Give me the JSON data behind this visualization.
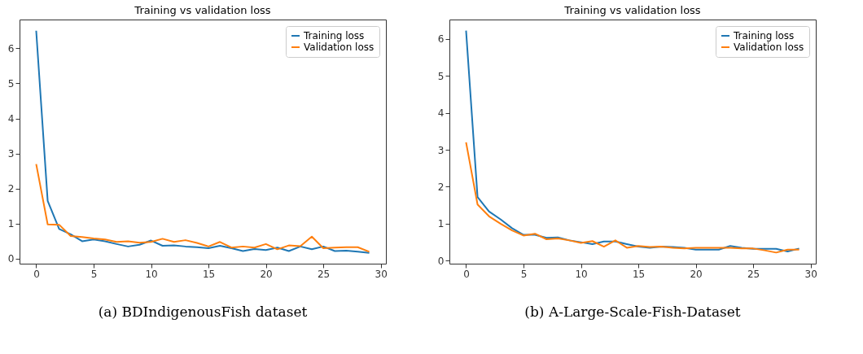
{
  "chart_data": [
    {
      "type": "line",
      "title": "Training vs validation loss",
      "x": [
        0,
        1,
        2,
        3,
        4,
        5,
        6,
        7,
        8,
        9,
        10,
        11,
        12,
        13,
        14,
        15,
        16,
        17,
        18,
        19,
        20,
        21,
        22,
        23,
        24,
        25,
        26,
        27,
        28,
        29
      ],
      "xlim": [
        -1.45,
        30.45
      ],
      "xticks": [
        0,
        5,
        10,
        15,
        20,
        25,
        30
      ],
      "ylim": [
        -0.14,
        6.82
      ],
      "yticks": [
        0,
        1,
        2,
        3,
        4,
        5,
        6
      ],
      "grid": false,
      "legend": "top right",
      "annotations": [
        "(a) BDIndigenousFish dataset"
      ],
      "series": [
        {
          "name": "Training loss",
          "color": "#1f77b4",
          "values": [
            6.5,
            1.65,
            0.85,
            0.7,
            0.5,
            0.55,
            0.5,
            0.42,
            0.35,
            0.4,
            0.52,
            0.37,
            0.38,
            0.35,
            0.33,
            0.3,
            0.37,
            0.3,
            0.22,
            0.28,
            0.25,
            0.32,
            0.22,
            0.35,
            0.27,
            0.35,
            0.22,
            0.23,
            0.2,
            0.17
          ]
        },
        {
          "name": "Validation loss",
          "color": "#ff7f0e",
          "values": [
            2.7,
            0.98,
            0.97,
            0.65,
            0.62,
            0.58,
            0.55,
            0.48,
            0.5,
            0.46,
            0.48,
            0.57,
            0.48,
            0.53,
            0.45,
            0.35,
            0.48,
            0.32,
            0.35,
            0.32,
            0.42,
            0.27,
            0.38,
            0.36,
            0.63,
            0.3,
            0.32,
            0.33,
            0.33,
            0.2
          ]
        }
      ]
    },
    {
      "type": "line",
      "title": "Training vs validation loss",
      "x": [
        0,
        1,
        2,
        3,
        4,
        5,
        6,
        7,
        8,
        9,
        10,
        11,
        12,
        13,
        14,
        15,
        16,
        17,
        18,
        19,
        20,
        21,
        22,
        23,
        24,
        25,
        26,
        27,
        28,
        29
      ],
      "xlim": [
        -1.45,
        30.45
      ],
      "xticks": [
        0,
        5,
        10,
        15,
        20,
        25,
        30
      ],
      "ylim": [
        -0.08,
        6.52
      ],
      "yticks": [
        0,
        1,
        2,
        3,
        4,
        5,
        6
      ],
      "grid": false,
      "legend": "top right",
      "annotations": [
        "(b) A-Large-Scale-Fish-Dataset"
      ],
      "series": [
        {
          "name": "Training loss",
          "color": "#1f77b4",
          "values": [
            6.22,
            1.72,
            1.33,
            1.12,
            0.88,
            0.7,
            0.7,
            0.62,
            0.63,
            0.55,
            0.5,
            0.45,
            0.52,
            0.52,
            0.45,
            0.38,
            0.35,
            0.38,
            0.37,
            0.35,
            0.3,
            0.3,
            0.3,
            0.4,
            0.35,
            0.32,
            0.32,
            0.32,
            0.25,
            0.33
          ]
        },
        {
          "name": "Validation loss",
          "color": "#ff7f0e",
          "values": [
            3.2,
            1.52,
            1.2,
            1.0,
            0.82,
            0.68,
            0.73,
            0.58,
            0.6,
            0.55,
            0.48,
            0.53,
            0.38,
            0.55,
            0.35,
            0.4,
            0.37,
            0.38,
            0.35,
            0.33,
            0.35,
            0.35,
            0.35,
            0.35,
            0.33,
            0.33,
            0.28,
            0.22,
            0.3,
            0.3
          ]
        }
      ]
    }
  ]
}
